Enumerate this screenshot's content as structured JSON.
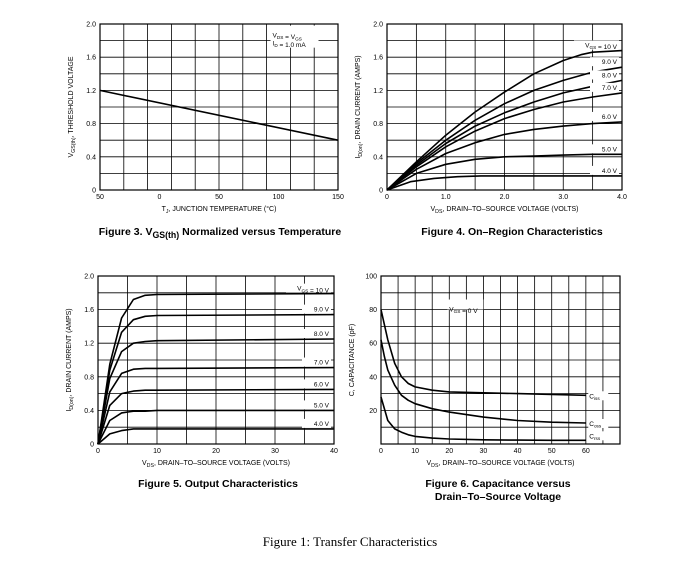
{
  "figure_caption": "Figure 1: Transfer Characteristics",
  "chart_data": [
    {
      "id": "fig3",
      "type": "line",
      "caption": "Figure 3. V_GS(th) Normalized versus Temperature",
      "caption_parts": {
        "prefix": "Figure 3. V",
        "sub": "GS(th)",
        "suffix": " Normalized versus Temperature"
      },
      "xlabel": {
        "sym": "T",
        "sub": "J",
        "rest": ", JUNCTION TEMPERATURE (°C)"
      },
      "ylabel": {
        "sym": "V",
        "sub": "GS(th)",
        "rest": ", THRESHOLD VOLTAGE"
      },
      "xlim": [
        -50,
        150
      ],
      "ylim": [
        0,
        2.0
      ],
      "xticks": [
        -50,
        0,
        50,
        100,
        150
      ],
      "xtick_labels": [
        "50",
        "0",
        "50",
        "100",
        "150"
      ],
      "yticks": [
        0,
        0.4,
        0.8,
        1.2,
        1.6,
        2.0
      ],
      "ytick_labels": [
        "0",
        "0.4",
        "0.8",
        "1.2",
        "1.6",
        "2.0"
      ],
      "grid": {
        "x_divisions": 10,
        "y_divisions": 10
      },
      "annotations": [
        "V_DS = V_GS",
        "I_D = 1.0 mA"
      ],
      "series": [
        {
          "x": [
            -50,
            150
          ],
          "y": [
            1.2,
            0.6
          ]
        }
      ]
    },
    {
      "id": "fig4",
      "type": "line",
      "caption": "Figure 4. On-Region Characteristics",
      "caption_parts": {
        "prefix": "Figure 4. On–Region Characteristics",
        "sub": "",
        "suffix": ""
      },
      "xlabel": {
        "sym": "V",
        "sub": "DS",
        "rest": ", DRAIN–TO–SOURCE VOLTAGE (VOLTS)"
      },
      "ylabel": {
        "sym": "I",
        "sub": "D(on)",
        "rest": ", DRAIN CURRENT (AMPS)"
      },
      "xlim": [
        0,
        4.0
      ],
      "ylim": [
        0,
        2.0
      ],
      "xticks": [
        0,
        1.0,
        2.0,
        3.0,
        4.0
      ],
      "xtick_labels": [
        "0",
        "1.0",
        "2.0",
        "3.0",
        "4.0"
      ],
      "yticks": [
        0,
        0.4,
        0.8,
        1.2,
        1.6,
        2.0
      ],
      "ytick_labels": [
        "0",
        "0.4",
        "0.8",
        "1.2",
        "1.6",
        "2.0"
      ],
      "grid": {
        "x_divisions": 8,
        "y_divisions": 10
      },
      "series": [
        {
          "name": "V_GS = 10 V",
          "label": "V_GS = 10 V",
          "x": [
            0,
            0.5,
            1.0,
            1.5,
            2.0,
            2.5,
            3.0,
            3.3,
            3.5,
            4.0
          ],
          "y": [
            0,
            0.34,
            0.66,
            0.94,
            1.18,
            1.4,
            1.56,
            1.63,
            1.66,
            1.68
          ]
        },
        {
          "name": "9.0 V",
          "label": "9.0 V",
          "x": [
            0,
            0.5,
            1.0,
            1.5,
            2.0,
            2.5,
            3.0,
            3.5,
            4.0
          ],
          "y": [
            0,
            0.32,
            0.6,
            0.84,
            1.04,
            1.2,
            1.32,
            1.42,
            1.48
          ]
        },
        {
          "name": "8.0 V",
          "label": "8.0 V",
          "x": [
            0,
            0.5,
            1.0,
            1.5,
            2.0,
            2.5,
            3.0,
            3.5,
            4.0
          ],
          "y": [
            0,
            0.3,
            0.56,
            0.77,
            0.93,
            1.06,
            1.17,
            1.25,
            1.32
          ]
        },
        {
          "name": "7.0 V",
          "label": "7.0 V",
          "x": [
            0,
            0.5,
            1.0,
            1.5,
            2.0,
            2.5,
            3.0,
            3.5,
            4.0
          ],
          "y": [
            0,
            0.28,
            0.52,
            0.71,
            0.86,
            0.97,
            1.06,
            1.12,
            1.17
          ]
        },
        {
          "name": "6.0 V",
          "label": "6.0 V",
          "x": [
            0,
            0.5,
            1.0,
            1.5,
            2.0,
            2.5,
            3.0,
            3.5,
            4.0
          ],
          "y": [
            0,
            0.25,
            0.44,
            0.57,
            0.67,
            0.73,
            0.77,
            0.8,
            0.82
          ]
        },
        {
          "name": "5.0 V",
          "label": "5.0 V",
          "x": [
            0,
            0.5,
            1.0,
            1.5,
            2.0,
            2.5,
            3.0,
            3.5,
            4.0
          ],
          "y": [
            0,
            0.2,
            0.31,
            0.37,
            0.4,
            0.41,
            0.42,
            0.43,
            0.43
          ]
        },
        {
          "name": "4.0 V",
          "label": "4.0 V",
          "x": [
            0,
            0.4,
            0.8,
            1.2,
            1.6,
            2.0,
            3.0,
            4.0
          ],
          "y": [
            0,
            0.1,
            0.14,
            0.16,
            0.17,
            0.17,
            0.17,
            0.17
          ]
        }
      ]
    },
    {
      "id": "fig5",
      "type": "line",
      "caption": "Figure 5. Output Characteristics",
      "caption_parts": {
        "prefix": "Figure 5. Output Characteristics",
        "sub": "",
        "suffix": ""
      },
      "xlabel": {
        "sym": "V",
        "sub": "DS",
        "rest": ", DRAIN–TO–SOURCE VOLTAGE (VOLTS)"
      },
      "ylabel": {
        "sym": "I",
        "sub": "D(on)",
        "rest": ", DRAIN CURRENT (AMPS)"
      },
      "xlim": [
        0,
        40
      ],
      "ylim": [
        0,
        2.0
      ],
      "xticks": [
        0,
        10,
        20,
        30,
        40
      ],
      "xtick_labels": [
        "0",
        "10",
        "20",
        "30",
        "40"
      ],
      "yticks": [
        0,
        0.4,
        0.8,
        1.2,
        1.6,
        2.0
      ],
      "ytick_labels": [
        "0",
        "0.4",
        "0.8",
        "1.2",
        "1.6",
        "2.0"
      ],
      "grid": {
        "x_divisions": 8,
        "y_divisions": 10
      },
      "series": [
        {
          "name": "V_GS = 10 V",
          "label": "V_GS = 10 V",
          "x": [
            0,
            2,
            4,
            6,
            8,
            10,
            40
          ],
          "y": [
            0,
            0.95,
            1.5,
            1.72,
            1.77,
            1.78,
            1.79
          ]
        },
        {
          "name": "9.0 V",
          "label": "9.0 V",
          "x": [
            0,
            2,
            4,
            6,
            8,
            10,
            40
          ],
          "y": [
            0,
            0.88,
            1.33,
            1.48,
            1.52,
            1.53,
            1.54
          ]
        },
        {
          "name": "8.0 V",
          "label": "8.0 V",
          "x": [
            0,
            2,
            4,
            6,
            8,
            10,
            40
          ],
          "y": [
            0,
            0.78,
            1.1,
            1.2,
            1.22,
            1.23,
            1.25
          ]
        },
        {
          "name": "7.0 V",
          "label": "7.0 V",
          "x": [
            0,
            2,
            4,
            6,
            8,
            10,
            40
          ],
          "y": [
            0,
            0.62,
            0.84,
            0.89,
            0.9,
            0.9,
            0.91
          ]
        },
        {
          "name": "6.0 V",
          "label": "6.0 V",
          "x": [
            0,
            2,
            4,
            6,
            8,
            10,
            40
          ],
          "y": [
            0,
            0.46,
            0.6,
            0.63,
            0.64,
            0.64,
            0.65
          ]
        },
        {
          "name": "5.0 V",
          "label": "5.0 V",
          "x": [
            0,
            2,
            4,
            6,
            8,
            10,
            40
          ],
          "y": [
            0,
            0.28,
            0.37,
            0.39,
            0.39,
            0.4,
            0.4
          ]
        },
        {
          "name": "4.0 V",
          "label": "4.0 V",
          "x": [
            0,
            2,
            4,
            6,
            8,
            10,
            40
          ],
          "y": [
            0,
            0.12,
            0.16,
            0.18,
            0.18,
            0.18,
            0.18
          ]
        }
      ]
    },
    {
      "id": "fig6",
      "type": "line",
      "caption": "Figure 6. Capacitance versus Drain-To-Source Voltage",
      "caption_lines": [
        "Figure 6. Capacitance versus",
        "Drain–To–Source Voltage"
      ],
      "xlabel": {
        "sym": "V",
        "sub": "DS",
        "rest": ", DRAIN–TO–SOURCE VOLTAGE (VOLTS)"
      },
      "ylabel": {
        "sym": "C",
        "sub": "",
        "rest": ", CAPACITANCE (pF)"
      },
      "xlim": [
        0,
        70
      ],
      "ylim": [
        0,
        100
      ],
      "xticks": [
        0,
        10,
        20,
        30,
        40,
        50,
        60
      ],
      "xtick_labels": [
        "0",
        "10",
        "20",
        "30",
        "40",
        "50",
        "60"
      ],
      "yticks": [
        20,
        40,
        60,
        80,
        100
      ],
      "ytick_labels": [
        "20",
        "40",
        "60",
        "80",
        "100"
      ],
      "grid": {
        "x_divisions": 14,
        "y_divisions": 10
      },
      "annotations": [
        "V_GS = 0 V"
      ],
      "series": [
        {
          "name": "C_iss",
          "label": "C_iss",
          "x": [
            0,
            2,
            4,
            6,
            8,
            10,
            15,
            20,
            30,
            40,
            50,
            60
          ],
          "y": [
            80,
            62,
            48,
            40,
            36,
            34,
            32,
            31,
            30.5,
            30,
            29.5,
            29
          ]
        },
        {
          "name": "C_oss",
          "label": "C_oss",
          "x": [
            0,
            1,
            2,
            4,
            6,
            8,
            10,
            15,
            20,
            30,
            40,
            50,
            60
          ],
          "y": [
            62,
            52,
            44,
            35,
            29,
            26,
            24,
            21,
            19,
            16,
            14,
            13,
            12.5
          ]
        },
        {
          "name": "C_rss",
          "label": "C_rss",
          "x": [
            0,
            2,
            4,
            6,
            8,
            10,
            15,
            20,
            30,
            40,
            50,
            60
          ],
          "y": [
            28,
            14,
            9,
            7,
            5.5,
            4.5,
            3.5,
            3,
            2.5,
            2.3,
            2.2,
            2.2
          ]
        }
      ]
    }
  ]
}
